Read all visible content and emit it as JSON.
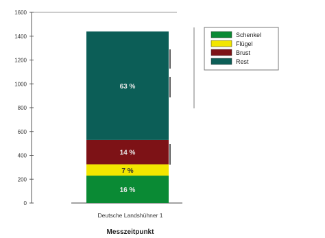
{
  "chart_data": {
    "type": "bar",
    "stacked": true,
    "categories": [
      "Deutsche Landshühner 1"
    ],
    "series": [
      {
        "name": "Schenkel",
        "values": [
          230
        ],
        "label": "16 %",
        "color": "#0a8a34"
      },
      {
        "name": "Flügel",
        "values": [
          95
        ],
        "label": "7 %",
        "color": "#f2e600"
      },
      {
        "name": "Brust",
        "values": [
          205
        ],
        "label": "14 %",
        "color": "#7d1216"
      },
      {
        "name": "Rest",
        "values": [
          910
        ],
        "label": "63 %",
        "color": "#0c5e57"
      }
    ],
    "legend_order": [
      "Schenkel",
      "Flügel",
      "Brust",
      "Rest"
    ],
    "legend_position": "top-right",
    "xlabel": "Messzeitpunkt",
    "ylabel": "",
    "ylim": [
      0,
      1600
    ],
    "yticks": [
      {
        "value": 0,
        "label": "0"
      },
      {
        "value": 200,
        "label": "200"
      },
      {
        "value": 400,
        "label": "400"
      },
      {
        "value": 600,
        "label": "600"
      },
      {
        "value": 800,
        "label": "800"
      },
      {
        "value": 1000,
        "label": "1000"
      },
      {
        "value": 1200,
        "label": "1200"
      },
      {
        "value": 1400,
        "label": "1400"
      },
      {
        "value": 1600,
        "label": "1600"
      }
    ],
    "grid": false
  }
}
